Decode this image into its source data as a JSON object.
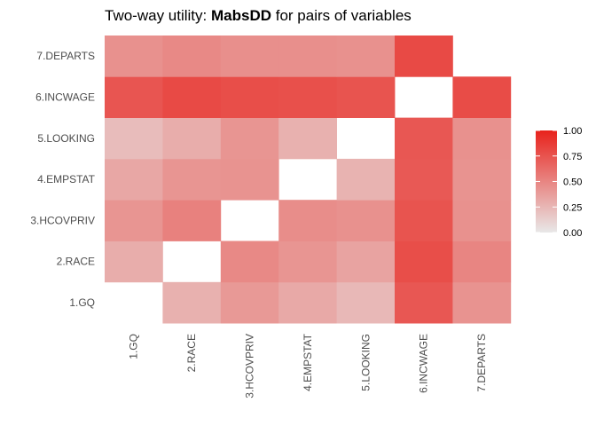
{
  "chart_data": {
    "type": "heatmap",
    "title_prefix": "Two-way utility: ",
    "title_bold": "MabsDD",
    "title_suffix": " for pairs of variables",
    "variables": [
      "1.GQ",
      "2.RACE",
      "3.HCOVPRIV",
      "4.EMPSTAT",
      "5.LOOKING",
      "6.INCWAGE",
      "7.DEPARTS"
    ],
    "x_categories": [
      "1.GQ",
      "2.RACE",
      "3.HCOVPRIV",
      "4.EMPSTAT",
      "5.LOOKING",
      "6.INCWAGE",
      "7.DEPARTS"
    ],
    "y_categories": [
      "1.GQ",
      "2.RACE",
      "3.HCOVPRIV",
      "4.EMPSTAT",
      "5.LOOKING",
      "6.INCWAGE",
      "7.DEPARTS"
    ],
    "cells": [
      {
        "x": "2.RACE",
        "y": "1.GQ",
        "value": 0.28
      },
      {
        "x": "3.HCOVPRIV",
        "y": "1.GQ",
        "value": 0.4
      },
      {
        "x": "4.EMPSTAT",
        "y": "1.GQ",
        "value": 0.32
      },
      {
        "x": "5.LOOKING",
        "y": "1.GQ",
        "value": 0.24
      },
      {
        "x": "6.INCWAGE",
        "y": "1.GQ",
        "value": 0.73
      },
      {
        "x": "7.DEPARTS",
        "y": "1.GQ",
        "value": 0.43
      },
      {
        "x": "1.GQ",
        "y": "2.RACE",
        "value": 0.3
      },
      {
        "x": "3.HCOVPRIV",
        "y": "2.RACE",
        "value": 0.48
      },
      {
        "x": "4.EMPSTAT",
        "y": "2.RACE",
        "value": 0.42
      },
      {
        "x": "5.LOOKING",
        "y": "2.RACE",
        "value": 0.35
      },
      {
        "x": "6.INCWAGE",
        "y": "2.RACE",
        "value": 0.78
      },
      {
        "x": "7.DEPARTS",
        "y": "2.RACE",
        "value": 0.5
      },
      {
        "x": "1.GQ",
        "y": "3.HCOVPRIV",
        "value": 0.42
      },
      {
        "x": "2.RACE",
        "y": "3.HCOVPRIV",
        "value": 0.52
      },
      {
        "x": "4.EMPSTAT",
        "y": "3.HCOVPRIV",
        "value": 0.46
      },
      {
        "x": "5.LOOKING",
        "y": "3.HCOVPRIV",
        "value": 0.44
      },
      {
        "x": "6.INCWAGE",
        "y": "3.HCOVPRIV",
        "value": 0.75
      },
      {
        "x": "7.DEPARTS",
        "y": "3.HCOVPRIV",
        "value": 0.44
      },
      {
        "x": "1.GQ",
        "y": "4.EMPSTAT",
        "value": 0.33
      },
      {
        "x": "2.RACE",
        "y": "4.EMPSTAT",
        "value": 0.42
      },
      {
        "x": "3.HCOVPRIV",
        "y": "4.EMPSTAT",
        "value": 0.43
      },
      {
        "x": "5.LOOKING",
        "y": "4.EMPSTAT",
        "value": 0.27
      },
      {
        "x": "6.INCWAGE",
        "y": "4.EMPSTAT",
        "value": 0.72
      },
      {
        "x": "7.DEPARTS",
        "y": "4.EMPSTAT",
        "value": 0.43
      },
      {
        "x": "1.GQ",
        "y": "5.LOOKING",
        "value": 0.22
      },
      {
        "x": "2.RACE",
        "y": "5.LOOKING",
        "value": 0.3
      },
      {
        "x": "3.HCOVPRIV",
        "y": "5.LOOKING",
        "value": 0.42
      },
      {
        "x": "4.EMPSTAT",
        "y": "5.LOOKING",
        "value": 0.28
      },
      {
        "x": "6.INCWAGE",
        "y": "5.LOOKING",
        "value": 0.73
      },
      {
        "x": "7.DEPARTS",
        "y": "5.LOOKING",
        "value": 0.44
      },
      {
        "x": "1.GQ",
        "y": "6.INCWAGE",
        "value": 0.74
      },
      {
        "x": "2.RACE",
        "y": "6.INCWAGE",
        "value": 0.8
      },
      {
        "x": "3.HCOVPRIV",
        "y": "6.INCWAGE",
        "value": 0.78
      },
      {
        "x": "4.EMPSTAT",
        "y": "6.INCWAGE",
        "value": 0.77
      },
      {
        "x": "5.LOOKING",
        "y": "6.INCWAGE",
        "value": 0.75
      },
      {
        "x": "7.DEPARTS",
        "y": "6.INCWAGE",
        "value": 0.79
      },
      {
        "x": "1.GQ",
        "y": "7.DEPARTS",
        "value": 0.44
      },
      {
        "x": "2.RACE",
        "y": "7.DEPARTS",
        "value": 0.48
      },
      {
        "x": "3.HCOVPRIV",
        "y": "7.DEPARTS",
        "value": 0.45
      },
      {
        "x": "4.EMPSTAT",
        "y": "7.DEPARTS",
        "value": 0.45
      },
      {
        "x": "5.LOOKING",
        "y": "7.DEPARTS",
        "value": 0.44
      },
      {
        "x": "6.INCWAGE",
        "y": "7.DEPARTS",
        "value": 0.8
      }
    ],
    "color_scale": {
      "low": "#e8e8e8",
      "high": "#e8221c",
      "min": 0,
      "max": 1
    },
    "legend": {
      "position": "right",
      "ticks": [
        "1.00",
        "0.75",
        "0.50",
        "0.25",
        "0.00"
      ],
      "tick_values": [
        1,
        0.75,
        0.5,
        0.25,
        0
      ]
    },
    "grid": false
  }
}
